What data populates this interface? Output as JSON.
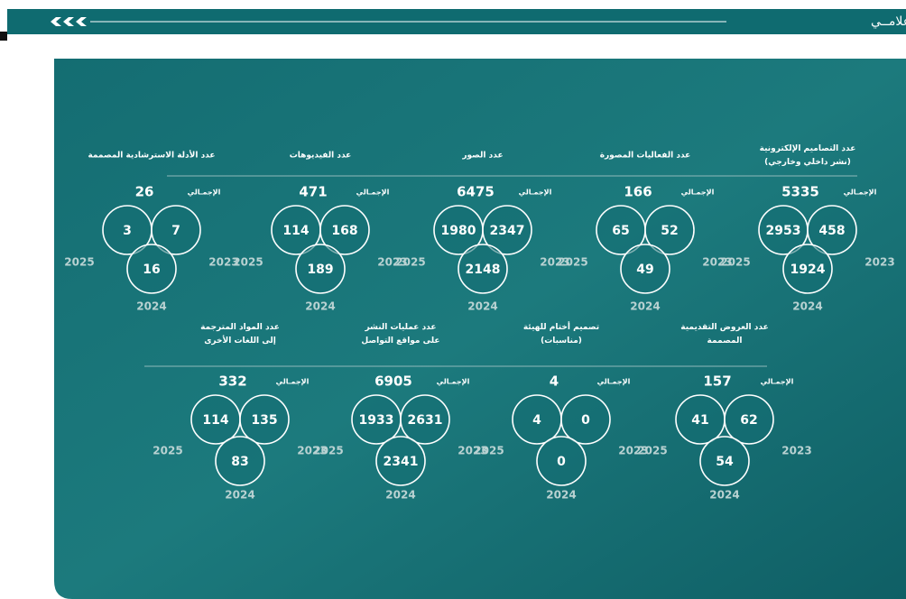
{
  "header": {
    "title": "مركــز أثـــر الإعلامــي"
  },
  "groups": [
    {
      "title": [
        "عدد التصاميم الإلكترونية",
        "(نشر داخلي وخارجي)"
      ],
      "total_label": "الإجمـالي",
      "total": 5335,
      "circles": [
        {
          "year": 2025,
          "value": 2953
        },
        {
          "year": 2023,
          "value": 458
        },
        {
          "year": 2024,
          "value": 1924
        }
      ]
    },
    {
      "title": [
        "عدد الفعاليات المصورة"
      ],
      "total_label": "الإجمـالي",
      "total": 166,
      "circles": [
        {
          "year": 2025,
          "value": 65
        },
        {
          "year": 2023,
          "value": 52
        },
        {
          "year": 2024,
          "value": 49
        }
      ]
    },
    {
      "title": [
        "عدد الصور"
      ],
      "total_label": "الإجمـالي",
      "total": 6475,
      "circles": [
        {
          "year": 2025,
          "value": 1980
        },
        {
          "year": 2023,
          "value": 2347
        },
        {
          "year": 2024,
          "value": 2148
        }
      ]
    },
    {
      "title": [
        "عدد الفيديوهات"
      ],
      "total_label": "الإجمـالي",
      "total": 471,
      "circles": [
        {
          "year": 2025,
          "value": 114
        },
        {
          "year": 2023,
          "value": 168
        },
        {
          "year": 2024,
          "value": 189
        }
      ]
    },
    {
      "title": [
        "عدد الأدلة الاسترشادية المصممة"
      ],
      "total_label": "الإجمـالي",
      "total": 26,
      "circles": [
        {
          "year": 2025,
          "value": 3
        },
        {
          "year": 2023,
          "value": 7
        },
        {
          "year": 2024,
          "value": 16
        }
      ]
    },
    {
      "title": [
        "عدد العروض التقديمية",
        "المصممة"
      ],
      "total_label": "الإجمـالي",
      "total": 157,
      "circles": [
        {
          "year": 2025,
          "value": 41
        },
        {
          "year": 2023,
          "value": 62
        },
        {
          "year": 2024,
          "value": 54
        }
      ]
    },
    {
      "title": [
        "تصميم أختام للهيئة",
        "(مناسبات)"
      ],
      "total_label": "الإجمـالي",
      "total": 4,
      "circles": [
        {
          "year": 2025,
          "value": 4
        },
        {
          "year": 2023,
          "value": 0
        },
        {
          "year": 2024,
          "value": 0
        }
      ]
    },
    {
      "title": [
        "عدد عمليات النشر",
        "على مواقع التواصل"
      ],
      "total_label": "الإجمـالي",
      "total": 6905,
      "circles": [
        {
          "year": 2025,
          "value": 1933
        },
        {
          "year": 2023,
          "value": 2631
        },
        {
          "year": 2024,
          "value": 2341
        }
      ]
    },
    {
      "title": [
        "عدد المواد المترجمة",
        "إلى اللغات الأخرى"
      ],
      "total_label": "الإجمـالي",
      "total": 332,
      "circles": [
        {
          "year": 2025,
          "value": 114
        },
        {
          "year": 2023,
          "value": 135
        },
        {
          "year": 2024,
          "value": 83
        }
      ]
    }
  ]
}
